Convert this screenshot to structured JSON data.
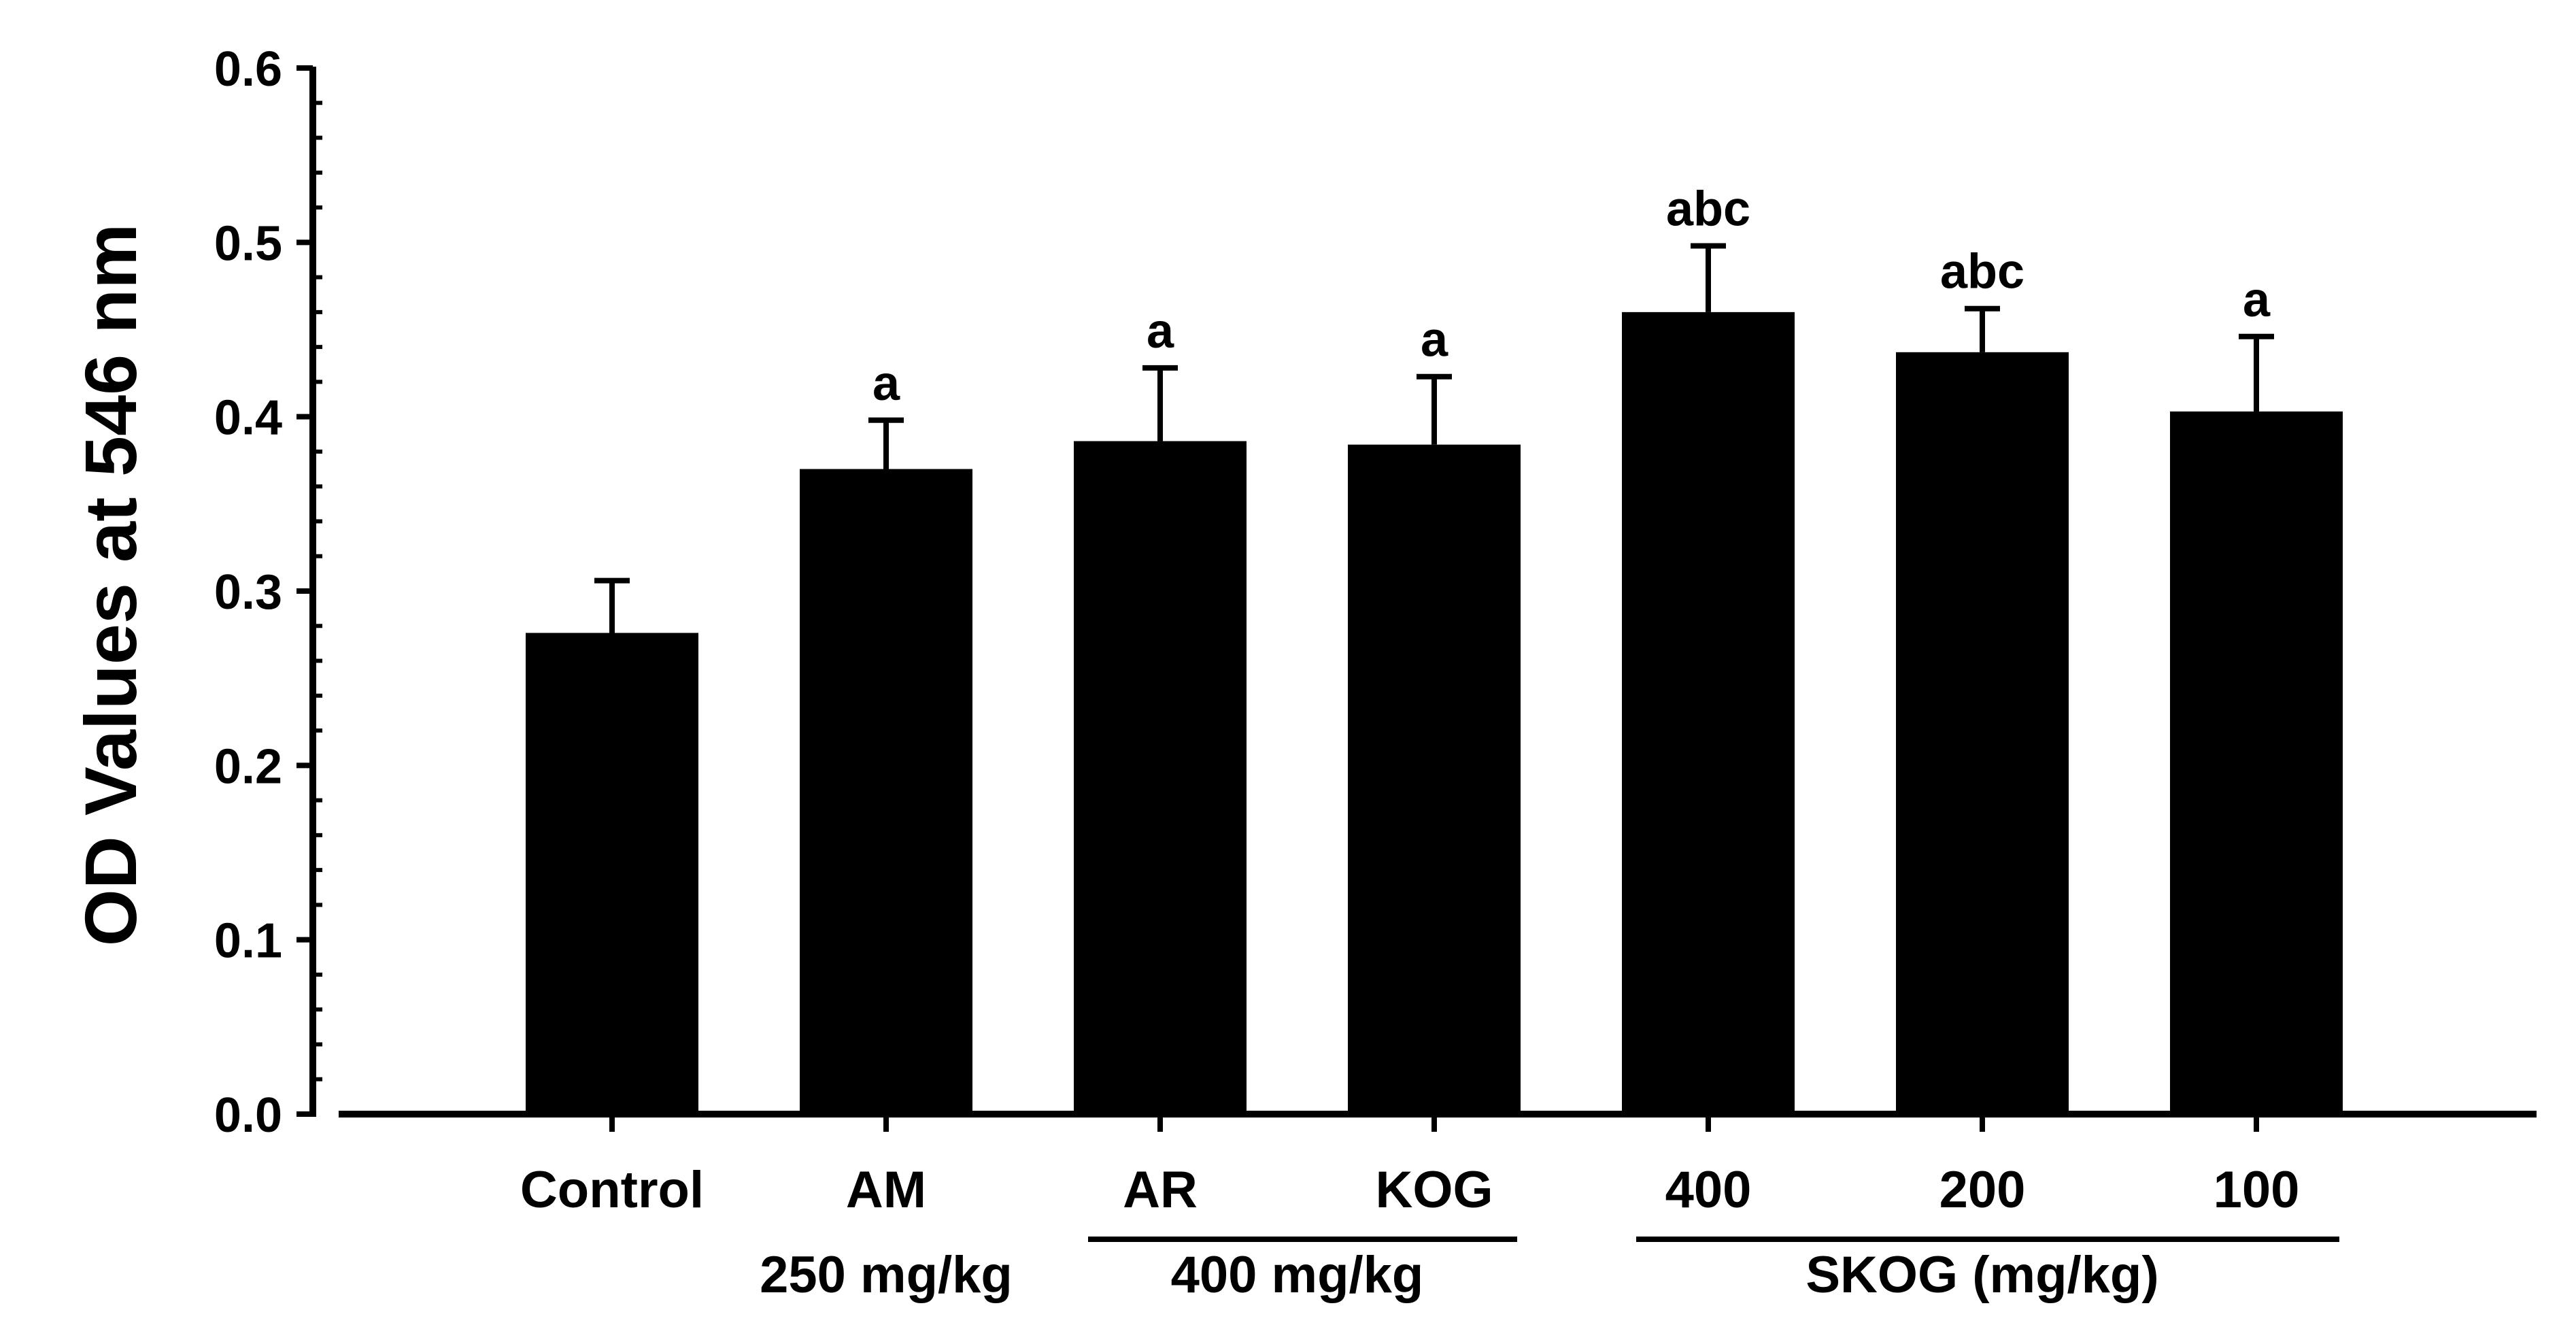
{
  "chart_data": {
    "type": "bar",
    "title": "",
    "xlabel": "",
    "ylabel": "OD Values at 546 nm",
    "ylim": [
      0,
      0.6
    ],
    "yticks": [
      "0.0",
      "0.1",
      "0.2",
      "0.3",
      "0.4",
      "0.5",
      "0.6"
    ],
    "grid": false,
    "categories": [
      "Control",
      "AM",
      "AR",
      "KOG",
      "400",
      "200",
      "100"
    ],
    "values": [
      0.276,
      0.37,
      0.386,
      0.384,
      0.46,
      0.437,
      0.403
    ],
    "errors": [
      0.03,
      0.028,
      0.042,
      0.039,
      0.038,
      0.025,
      0.043
    ],
    "significance": [
      "",
      "a",
      "a",
      "a",
      "abc",
      "abc",
      "a"
    ],
    "bar_color": "#000000",
    "group_labels": [
      {
        "text": "250 mg/kg",
        "categories": [
          "AM"
        ],
        "underline": false
      },
      {
        "text": "400 mg/kg",
        "categories": [
          "AR",
          "KOG"
        ],
        "underline": true
      },
      {
        "text": "SKOG (mg/kg)",
        "categories": [
          "400",
          "200",
          "100"
        ],
        "underline": true
      }
    ]
  }
}
